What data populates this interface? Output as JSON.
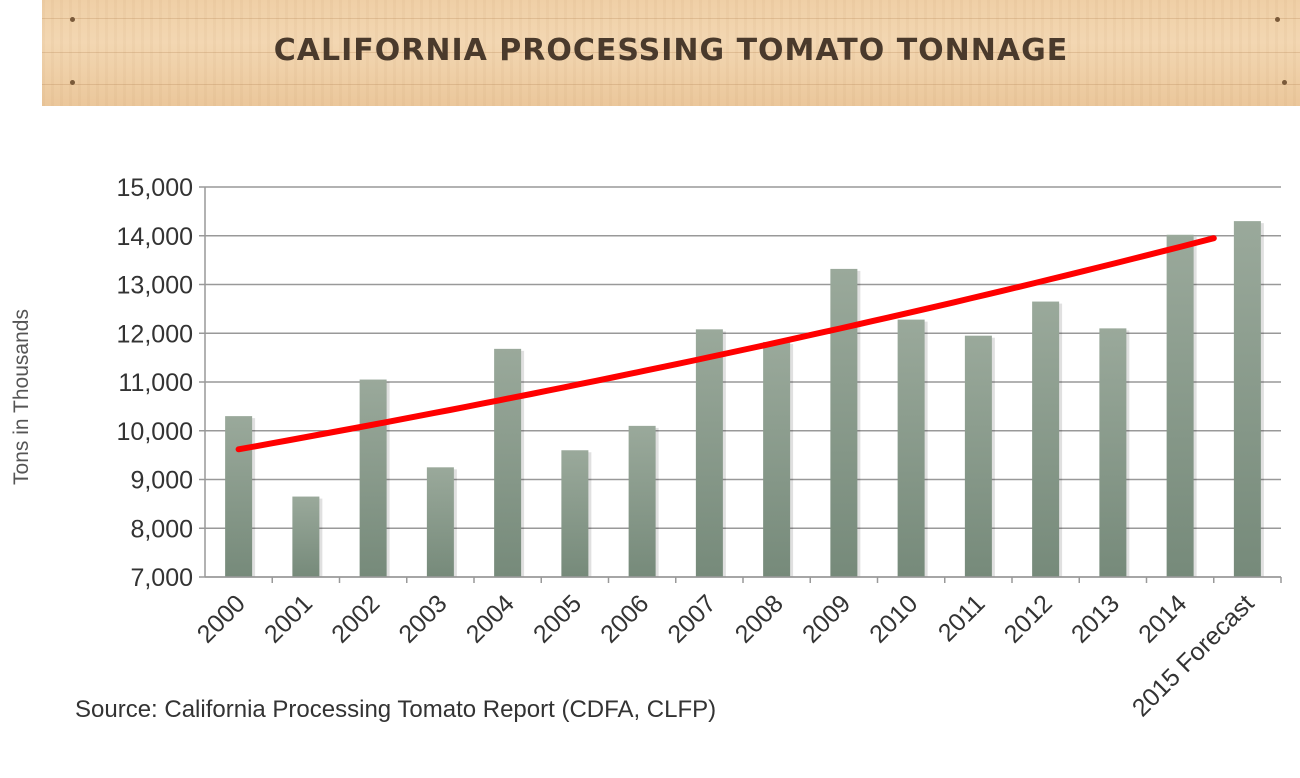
{
  "banner": {
    "title": "CALIFORNIA PROCESSING TOMATO TONNAGE",
    "background_color": "#f0d2ab",
    "title_color": "#4a3a2c"
  },
  "chart_data": {
    "type": "bar",
    "title": "CALIFORNIA PROCESSING TOMATO TONNAGE",
    "xlabel": "",
    "ylabel": "Tons in Thousands",
    "categories": [
      "2000",
      "2001",
      "2002",
      "2003",
      "2004",
      "2005",
      "2006",
      "2007",
      "2008",
      "2009",
      "2010",
      "2011",
      "2012",
      "2013",
      "2014",
      "2015 Forecast"
    ],
    "values": [
      10300,
      8650,
      11050,
      9250,
      11680,
      9600,
      10100,
      12080,
      11820,
      13320,
      12280,
      11950,
      12650,
      12100,
      14020,
      14300
    ],
    "ylim": [
      7000,
      15000
    ],
    "yticks": [
      7000,
      8000,
      9000,
      10000,
      11000,
      12000,
      13000,
      14000,
      15000
    ],
    "ytick_labels": [
      "7,000",
      "8,000",
      "9,000",
      "10,000",
      "11,000",
      "12,000",
      "13,000",
      "14,000",
      "15,000"
    ],
    "grid": true,
    "trendline": {
      "type": "exponential",
      "start_value": 9620,
      "end_value": 13950,
      "color": "#ff0000"
    },
    "bar_color": "#8b9a8d",
    "grid_color": "#999999"
  },
  "source": "Source: California Processing Tomato Report (CDFA, CLFP)"
}
